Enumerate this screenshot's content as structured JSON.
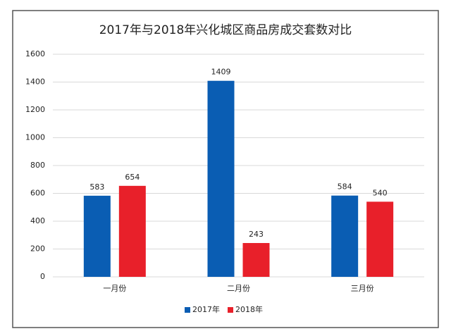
{
  "chart_data": {
    "type": "bar",
    "title": "2017年与2018年兴化城区商品房成交套数对比",
    "categories": [
      "一月份",
      "二月份",
      "三月份"
    ],
    "series": [
      {
        "name": "2017年",
        "color": "#0a5db3",
        "values": [
          583,
          1409,
          584
        ]
      },
      {
        "name": "2018年",
        "color": "#e8202a",
        "values": [
          654,
          243,
          540
        ]
      }
    ],
    "ylim": [
      0,
      1600
    ],
    "yticks": [
      0,
      200,
      400,
      600,
      800,
      1000,
      1200,
      1400,
      1600
    ],
    "grid": true,
    "legend": "bottom"
  }
}
